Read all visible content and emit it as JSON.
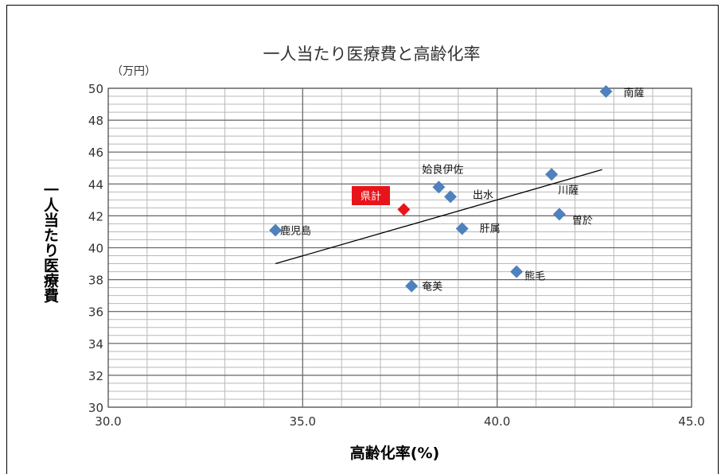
{
  "chart_data": {
    "type": "scatter",
    "title": "一人当たり医療費と高齢化率",
    "y_unit": "（万円）",
    "xlabel": "高齢化率(%)",
    "ylabel": "一人当たり医療費",
    "xlim": [
      30.0,
      45.0
    ],
    "ylim": [
      30,
      50
    ],
    "x_ticks": [
      "30.0",
      "35.0",
      "40.0",
      "45.0"
    ],
    "y_ticks": [
      "30",
      "32",
      "34",
      "36",
      "38",
      "40",
      "42",
      "44",
      "46",
      "48",
      "50"
    ],
    "grid": true,
    "points": [
      {
        "label": "南薩",
        "x": 42.8,
        "y": 49.8
      },
      {
        "label": "姶良伊佐",
        "x": 38.5,
        "y": 43.8
      },
      {
        "label": "出水",
        "x": 38.8,
        "y": 43.2
      },
      {
        "label": "川薩",
        "x": 41.4,
        "y": 44.6
      },
      {
        "label": "曽於",
        "x": 41.6,
        "y": 42.1
      },
      {
        "label": "鹿児島",
        "x": 34.3,
        "y": 41.1
      },
      {
        "label": "肝属",
        "x": 39.1,
        "y": 41.2
      },
      {
        "label": "熊毛",
        "x": 40.5,
        "y": 38.5
      },
      {
        "label": "奄美",
        "x": 37.8,
        "y": 37.6
      }
    ],
    "highlight": {
      "label": "県計",
      "x": 37.6,
      "y": 42.4
    },
    "trendline": {
      "x": [
        34.3,
        42.7
      ],
      "y": [
        39.0,
        44.9
      ]
    },
    "colors": {
      "point": "#4F81BD",
      "highlight": "#E8141B",
      "label_box": "#E8141B",
      "trendline": "#000000",
      "major_grid": "#666666",
      "minor_grid": "#b8b8b8"
    }
  }
}
